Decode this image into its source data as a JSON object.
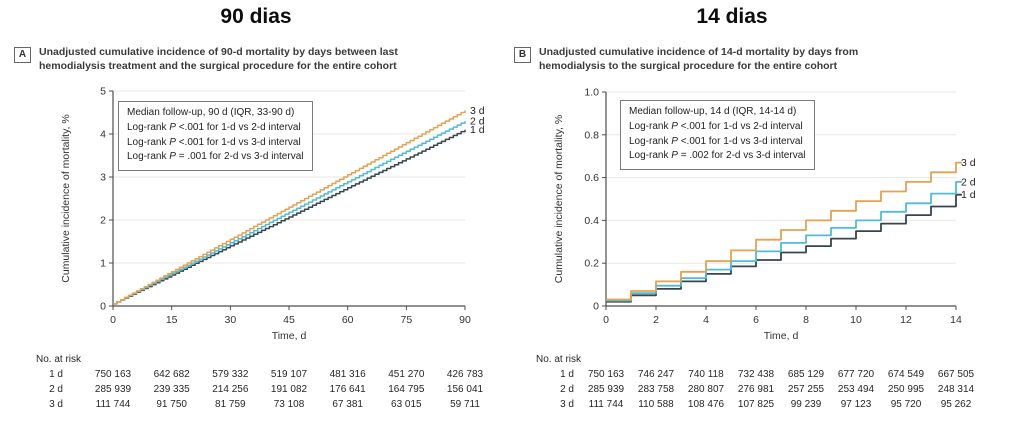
{
  "panels": [
    {
      "id": "A",
      "title": "90 dias",
      "panel_label": "A",
      "caption_line1": "Unadjusted cumulative incidence of 90-d mortality by days between last",
      "caption_line2": "hemodialysis treatment and the surgical procedure for the entire cohort",
      "risk_table": {
        "header": "No. at risk",
        "rows": [
          {
            "label": "1 d",
            "values": [
              "750 163",
              "642 682",
              "579 332",
              "519 107",
              "481 316",
              "451 270",
              "426 783"
            ]
          },
          {
            "label": "2 d",
            "values": [
              "285 939",
              "239 335",
              "214 256",
              "191 082",
              "176 641",
              "164 795",
              "156 041"
            ]
          },
          {
            "label": "3 d",
            "values": [
              "111 744",
              "91 750",
              "81 759",
              "73 108",
              "67 381",
              "63 015",
              "59 711"
            ]
          }
        ]
      }
    },
    {
      "id": "B",
      "title": "14 dias",
      "panel_label": "B",
      "caption_line1": "Unadjusted cumulative incidence of 14-d mortality by days from",
      "caption_line2": "hemodialysis to the surgical procedure for the entire cohort",
      "risk_table": {
        "header": "No. at risk",
        "rows": [
          {
            "label": "1 d",
            "values": [
              "750 163",
              "746 247",
              "740 118",
              "732 438",
              "685 129",
              "677 720",
              "674 549",
              "667 505"
            ]
          },
          {
            "label": "2 d",
            "values": [
              "285 939",
              "283 758",
              "280 807",
              "276 981",
              "257 255",
              "253 494",
              "250 995",
              "248 314"
            ]
          },
          {
            "label": "3 d",
            "values": [
              "111 744",
              "110 588",
              "108 476",
              "107 825",
              "99 239",
              "97 123",
              "95 720",
              "95 262"
            ]
          }
        ]
      }
    }
  ],
  "chart_data": [
    {
      "panel": "A",
      "type": "line",
      "step": "daily",
      "title": "90 dias",
      "x": [
        0,
        15,
        30,
        45,
        60,
        75,
        90
      ],
      "series": [
        {
          "name": "1 d",
          "color": "#36454E",
          "values": [
            0.05,
            0.72,
            1.4,
            2.07,
            2.75,
            3.42,
            4.1
          ]
        },
        {
          "name": "2 d",
          "color": "#4FBBD9",
          "values": [
            0.05,
            0.76,
            1.47,
            2.18,
            2.89,
            3.6,
            4.3
          ]
        },
        {
          "name": "3 d",
          "color": "#E4A24E",
          "values": [
            0.05,
            0.8,
            1.55,
            2.3,
            3.05,
            3.8,
            4.55
          ]
        }
      ],
      "xlabel": "Time, d",
      "ylabel": "Cumulative incidence of mortality, %",
      "xlim": [
        0,
        90
      ],
      "ylim": [
        0,
        5
      ],
      "xticks": [
        "0",
        "15",
        "30",
        "45",
        "60",
        "75",
        "90"
      ],
      "yticks": [
        "0",
        "1",
        "2",
        "3",
        "4",
        "5"
      ],
      "grid": true,
      "legend_position": "top-left",
      "legend_box_lines": [
        "Median follow-up, 90 d (IQR, 33-90 d)",
        "Log-rank P <.001 for 1-d vs 2-d interval",
        "Log-rank P <.001 for 1-d vs 3-d interval",
        "Log-rank P = .001 for 2-d vs 3-d interval"
      ]
    },
    {
      "panel": "B",
      "type": "line",
      "step": "step-after",
      "title": "14 dias",
      "x": [
        0,
        1,
        2,
        3,
        4,
        5,
        6,
        7,
        8,
        9,
        10,
        11,
        12,
        13,
        14
      ],
      "series": [
        {
          "name": "1 d",
          "color": "#36454E",
          "values": [
            0.02,
            0.05,
            0.08,
            0.115,
            0.15,
            0.185,
            0.215,
            0.25,
            0.28,
            0.315,
            0.35,
            0.385,
            0.425,
            0.465,
            0.52
          ]
        },
        {
          "name": "2 d",
          "color": "#4FBBD9",
          "values": [
            0.025,
            0.06,
            0.095,
            0.13,
            0.17,
            0.21,
            0.255,
            0.295,
            0.33,
            0.365,
            0.4,
            0.44,
            0.48,
            0.525,
            0.58
          ]
        },
        {
          "name": "3 d",
          "color": "#E4A24E",
          "values": [
            0.03,
            0.07,
            0.115,
            0.16,
            0.21,
            0.26,
            0.31,
            0.355,
            0.4,
            0.445,
            0.49,
            0.535,
            0.58,
            0.625,
            0.67
          ]
        }
      ],
      "xlabel": "Time, d",
      "ylabel": "Cumulative incidence of mortality, %",
      "xlim": [
        0,
        14
      ],
      "ylim": [
        0,
        1.0
      ],
      "xticks": [
        "0",
        "2",
        "4",
        "6",
        "8",
        "10",
        "12",
        "14"
      ],
      "yticks": [
        "0",
        "0.2",
        "0.4",
        "0.6",
        "0.8",
        "1.0"
      ],
      "grid": true,
      "legend_position": "top-left",
      "legend_box_lines": [
        "Median follow-up, 14 d (IQR, 14-14 d)",
        "Log-rank P <.001 for 1-d vs 2-d interval",
        "Log-rank P <.001 for 1-d vs 3-d interval",
        "Log-rank P = .002 for 2-d vs 3-d interval"
      ]
    }
  ]
}
